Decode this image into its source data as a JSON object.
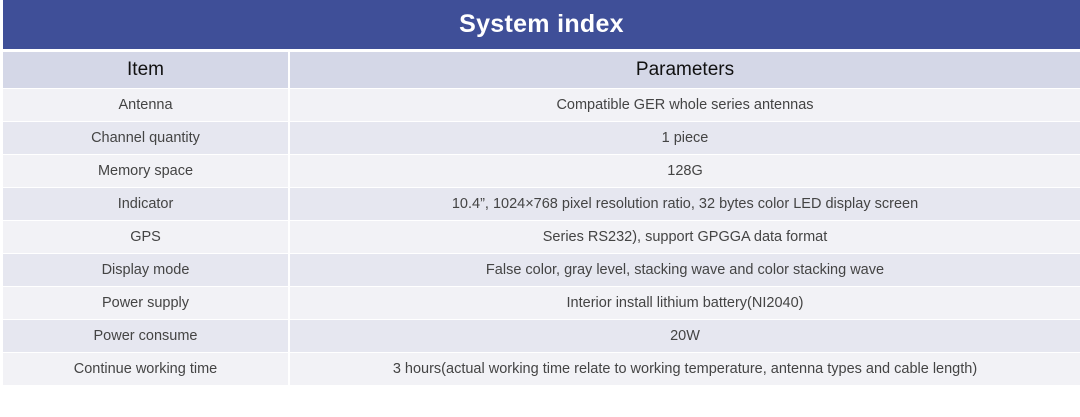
{
  "table": {
    "title": "System index",
    "headers": {
      "item": "Item",
      "parameters": "Parameters"
    },
    "rows": [
      {
        "item": "Antenna",
        "value": "Compatible GER whole series antennas"
      },
      {
        "item": "Channel quantity",
        "value": "1 piece"
      },
      {
        "item": "Memory space",
        "value": "128G"
      },
      {
        "item": "Indicator",
        "value": "10.4”, 1024×768 pixel resolution ratio, 32 bytes color LED display screen"
      },
      {
        "item": "GPS",
        "value": "Series RS232), support GPGGA data format"
      },
      {
        "item": "Display mode",
        "value": "False color, gray level, stacking wave and color stacking wave"
      },
      {
        "item": "Power supply",
        "value": "Interior install lithium battery(NI2040)"
      },
      {
        "item": "Power consume",
        "value": "20W"
      },
      {
        "item": "Continue working time",
        "value": "3 hours(actual working time relate to working temperature, antenna types and cable length)"
      }
    ]
  },
  "colors": {
    "title_background": "#3f4f98",
    "header_background": "#d4d7e7",
    "row_odd": "#f2f2f6",
    "row_even": "#e6e7f0"
  }
}
